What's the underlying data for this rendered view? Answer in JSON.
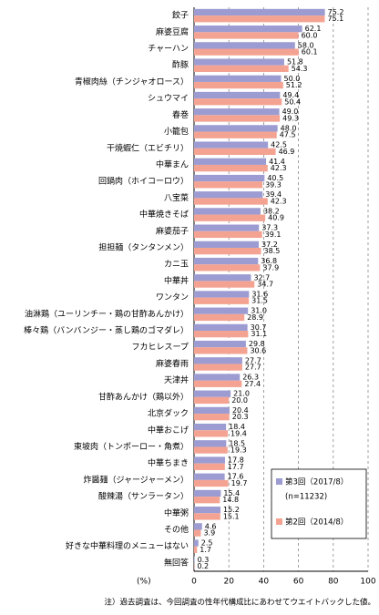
{
  "chart_data": {
    "type": "bar",
    "orientation": "horizontal",
    "categories": [
      "餃子",
      "麻婆豆腐",
      "チャーハン",
      "酢豚",
      "青椒肉絲（チンジャオロース）",
      "シュウマイ",
      "春巻",
      "小籠包",
      "干焼蝦仁（エビチリ）",
      "中華まん",
      "回鍋肉（ホイコーロウ）",
      "八宝菜",
      "中華焼きそば",
      "麻婆茄子",
      "担担麺（タンタンメン）",
      "カニ玉",
      "中華丼",
      "ワンタン",
      "油淋鶏（ユーリンチー・鶏の甘酢あんかけ）",
      "棒々鶏（バンバンジー・蒸し鶏のゴマダレ）",
      "フカヒレスープ",
      "麻婆春雨",
      "天津丼",
      "甘酢あんかけ（鶏以外）",
      "北京ダック",
      "中華おこげ",
      "東坡肉（トンポーロー・角煮）",
      "中華ちまき",
      "炸醤麺（ジャージャーメン）",
      "酸辣湯（サンラータン）",
      "中華粥",
      "その他",
      "好きな中華料理のメニューはない",
      "無回答"
    ],
    "series": [
      {
        "name": "第3回（2017/8）",
        "note": "(n=11232)",
        "color": "#9c9cd2",
        "values": [
          75.2,
          62.1,
          58.0,
          51.8,
          50.0,
          49.4,
          49.0,
          48.0,
          42.5,
          41.4,
          40.5,
          39.4,
          38.2,
          37.3,
          37.2,
          36.8,
          32.7,
          31.6,
          31.0,
          30.7,
          29.8,
          27.7,
          26.3,
          21.0,
          20.4,
          18.4,
          18.5,
          17.8,
          17.6,
          15.4,
          15.2,
          4.6,
          2.5,
          0.3
        ],
        "value_labels": [
          "75.2",
          "62.1",
          "58.0",
          "51.8",
          "50.0",
          "49.4",
          "49.0",
          "48.0",
          "42.5",
          "41.4",
          "40.5",
          "39.4",
          "38.2",
          "37.3",
          "37.2",
          "36.8",
          "32.7",
          "31.6",
          "31.0",
          "30.7",
          "29.8",
          "27.7",
          "26.3",
          "21.0",
          "20.4",
          "18.4",
          "18.5",
          "17.8",
          "17.6",
          "15.4",
          "15.2",
          "4.6",
          "2.5",
          "0.3"
        ]
      },
      {
        "name": "第2回（2014/8）",
        "color": "#f4a392",
        "values": [
          75.1,
          60.0,
          60.1,
          54.3,
          51.2,
          50.4,
          49.3,
          47.5,
          46.9,
          42.3,
          39.3,
          42.3,
          40.9,
          39.1,
          38.5,
          37.9,
          34.7,
          31.5,
          28.9,
          31.1,
          30.6,
          27.7,
          27.4,
          20.0,
          20.3,
          19.4,
          19.3,
          17.7,
          19.7,
          14.8,
          15.1,
          3.9,
          1.7,
          0.2
        ],
        "value_labels": [
          "75.1",
          "60.0",
          "60.1",
          "54.3",
          "51.2",
          "50.4",
          "49.3",
          "47.5",
          "46.9",
          "42.3",
          "39.3",
          "42.3",
          "40.9",
          "39.1",
          "38.5",
          "37.9",
          "34.7",
          "31.5",
          "28.9",
          "31.1",
          "30.6",
          "27.7",
          "27.4",
          "20.0",
          "20.3",
          "19.4",
          "19.3",
          "17.7",
          "19.7",
          "14.8",
          "15.1",
          "3.9",
          "1.7",
          "0.2"
        ]
      }
    ],
    "xlim": [
      0,
      100
    ],
    "xticks": [
      0,
      20,
      40,
      60,
      80,
      100
    ],
    "x_unit": "(%)",
    "grid": true,
    "legend": "lower right",
    "footnote": "注）過去調査は、今回調査の性年代構成比にあわせてウエイトバックした値。"
  }
}
